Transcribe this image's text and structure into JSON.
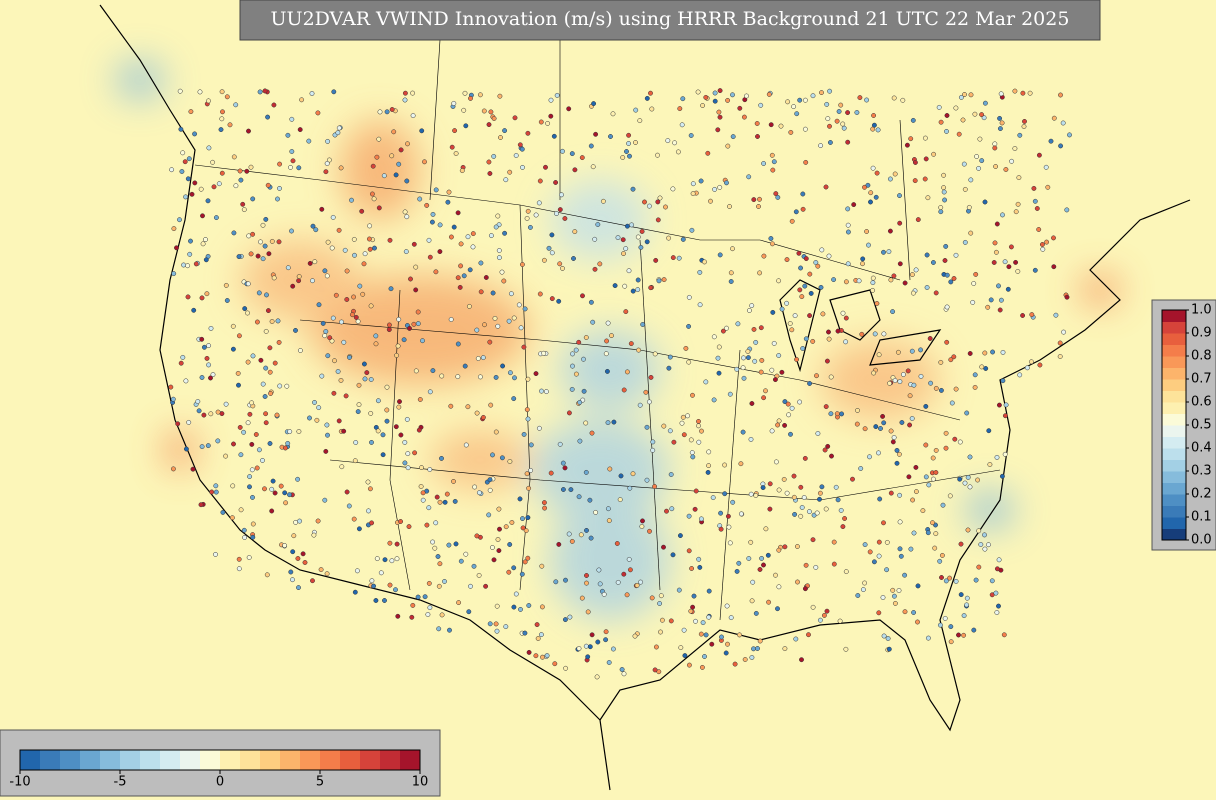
{
  "header": {
    "title": "UU2DVAR VWIND Innovation (m/s) using HRRR Background 21 UTC 22 Mar 2025"
  },
  "colorbars": [
    {
      "orientation": "horizontal",
      "lim": [
        -10,
        10
      ],
      "ticks": [
        -10,
        -5,
        0,
        5,
        10
      ],
      "colors": [
        "#2166ac",
        "#3a7bb8",
        "#4e8fc4",
        "#6aa7d1",
        "#86bcdc",
        "#a3d0e5",
        "#bcdfec",
        "#d4ecf1",
        "#ebf5ee",
        "#fbfbd8",
        "#fdf0b0",
        "#fde39a",
        "#fdcd80",
        "#fcb46b",
        "#f99858",
        "#f47d4a",
        "#e85f3d",
        "#d6433a",
        "#c12c34",
        "#a5142b"
      ]
    },
    {
      "orientation": "vertical",
      "lim": [
        0,
        1
      ],
      "ticks": [
        {
          "value": 0,
          "label": "0.0"
        },
        {
          "value": 0.1,
          "label": "0.1"
        },
        {
          "value": 0.2,
          "label": "0.2"
        },
        {
          "value": 0.3,
          "label": "0.3"
        },
        {
          "value": 0.4,
          "label": "0.4"
        },
        {
          "value": 0.5,
          "label": "0.5"
        },
        {
          "value": 0.6,
          "label": "0.6"
        },
        {
          "value": 0.7,
          "label": "0.7"
        },
        {
          "value": 0.8,
          "label": "0.8"
        },
        {
          "value": 0.9,
          "label": "0.9"
        },
        {
          "value": 1,
          "label": "1.0"
        }
      ],
      "colors": [
        "#163d7a",
        "#2166ac",
        "#3a7bb8",
        "#4e8fc4",
        "#6aa7d1",
        "#86bcdc",
        "#a3d0e5",
        "#bcdfec",
        "#d4ecf1",
        "#ebf5ee",
        "#fbfbd8",
        "#fdf0b0",
        "#fde39a",
        "#fdcd80",
        "#fcb46b",
        "#f99858",
        "#f47d4a",
        "#e85f3d",
        "#d6433a",
        "#a5142b"
      ]
    }
  ]
}
